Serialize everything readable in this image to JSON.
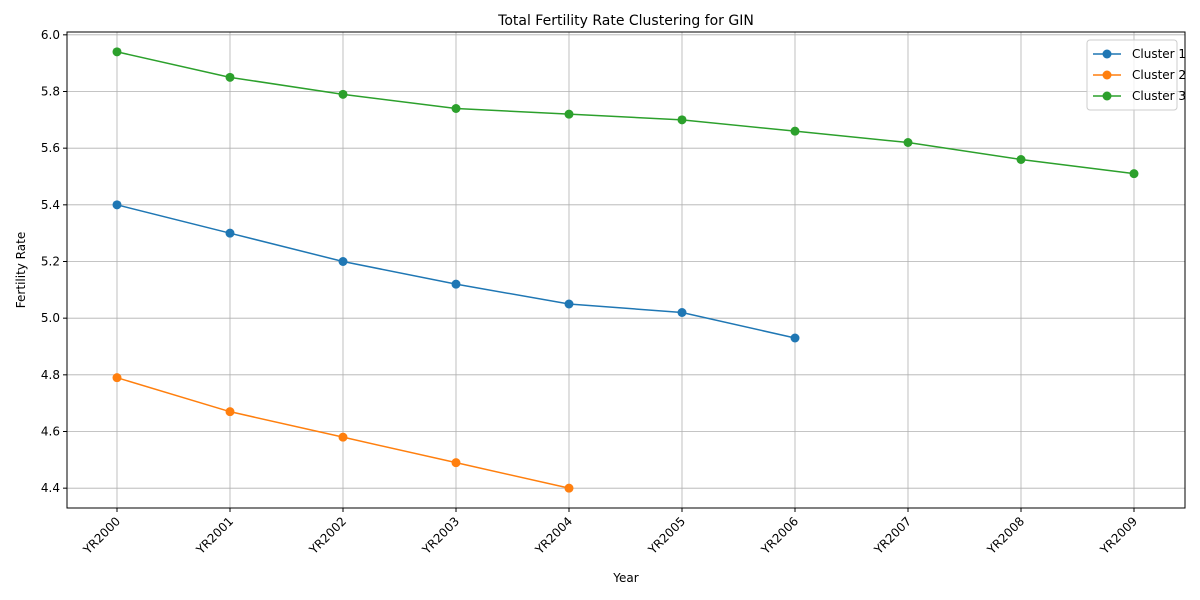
{
  "chart_data": {
    "type": "line",
    "title": "Total Fertility Rate Clustering for GIN",
    "xlabel": "Year",
    "ylabel": "Fertility Rate",
    "categories": [
      "YR2000",
      "YR2001",
      "YR2002",
      "YR2003",
      "YR2004",
      "YR2005",
      "YR2006",
      "YR2007",
      "YR2008",
      "YR2009"
    ],
    "yticks": [
      "4.4",
      "4.6",
      "4.8",
      "5.0",
      "5.2",
      "5.4",
      "5.6",
      "5.8",
      "6.0"
    ],
    "ylim": [
      4.33,
      6.01
    ],
    "grid": true,
    "legend_position": "top-right",
    "series": [
      {
        "name": "Cluster 1",
        "color": "#1f77b4",
        "values": [
          5.4,
          5.3,
          5.2,
          5.12,
          5.05,
          5.02,
          4.93,
          null,
          null,
          null
        ]
      },
      {
        "name": "Cluster 2",
        "color": "#ff7f0e",
        "values": [
          4.79,
          4.67,
          4.58,
          4.49,
          4.4,
          null,
          null,
          null,
          null,
          null
        ]
      },
      {
        "name": "Cluster 3",
        "color": "#2ca02c",
        "values": [
          5.94,
          5.85,
          5.79,
          5.74,
          5.72,
          5.7,
          5.66,
          5.62,
          5.56,
          5.51
        ]
      }
    ]
  }
}
